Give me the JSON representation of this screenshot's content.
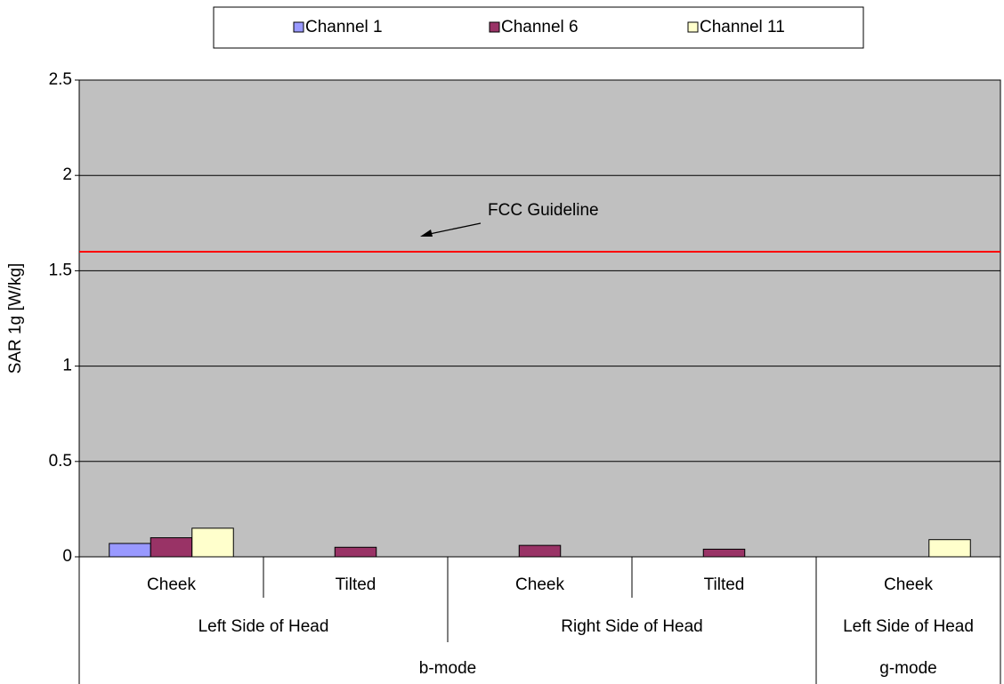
{
  "chart_data": {
    "type": "bar",
    "ylabel": "SAR 1g [W/kg]",
    "categories": [
      "Cheek",
      "Tilted",
      "Cheek",
      "Tilted",
      "Cheek"
    ],
    "category_level2": [
      "Left Side of Head",
      "Left Side of Head",
      "Right Side of Head",
      "Right Side of Head",
      "Left Side of Head"
    ],
    "category_level3": [
      "b-mode",
      "b-mode",
      "b-mode",
      "b-mode",
      "g-mode"
    ],
    "series": [
      {
        "name": "Channel 1",
        "color": "#9999ff",
        "values": [
          0.07,
          null,
          null,
          null,
          null
        ]
      },
      {
        "name": "Channel 6",
        "color": "#993366",
        "values": [
          0.1,
          0.05,
          0.06,
          0.04,
          null
        ]
      },
      {
        "name": "Channel 11",
        "color": "#ffffcc",
        "values": [
          0.15,
          null,
          null,
          null,
          0.09
        ]
      }
    ],
    "ylim": [
      0,
      2.5
    ],
    "yticks": [
      0,
      0.5,
      1,
      1.5,
      2,
      2.5
    ],
    "grid": true,
    "background": "#c0c0c0",
    "reference_line": {
      "value": 1.6,
      "color": "#ff0000",
      "label": "FCC Guideline"
    },
    "legend": "top"
  }
}
